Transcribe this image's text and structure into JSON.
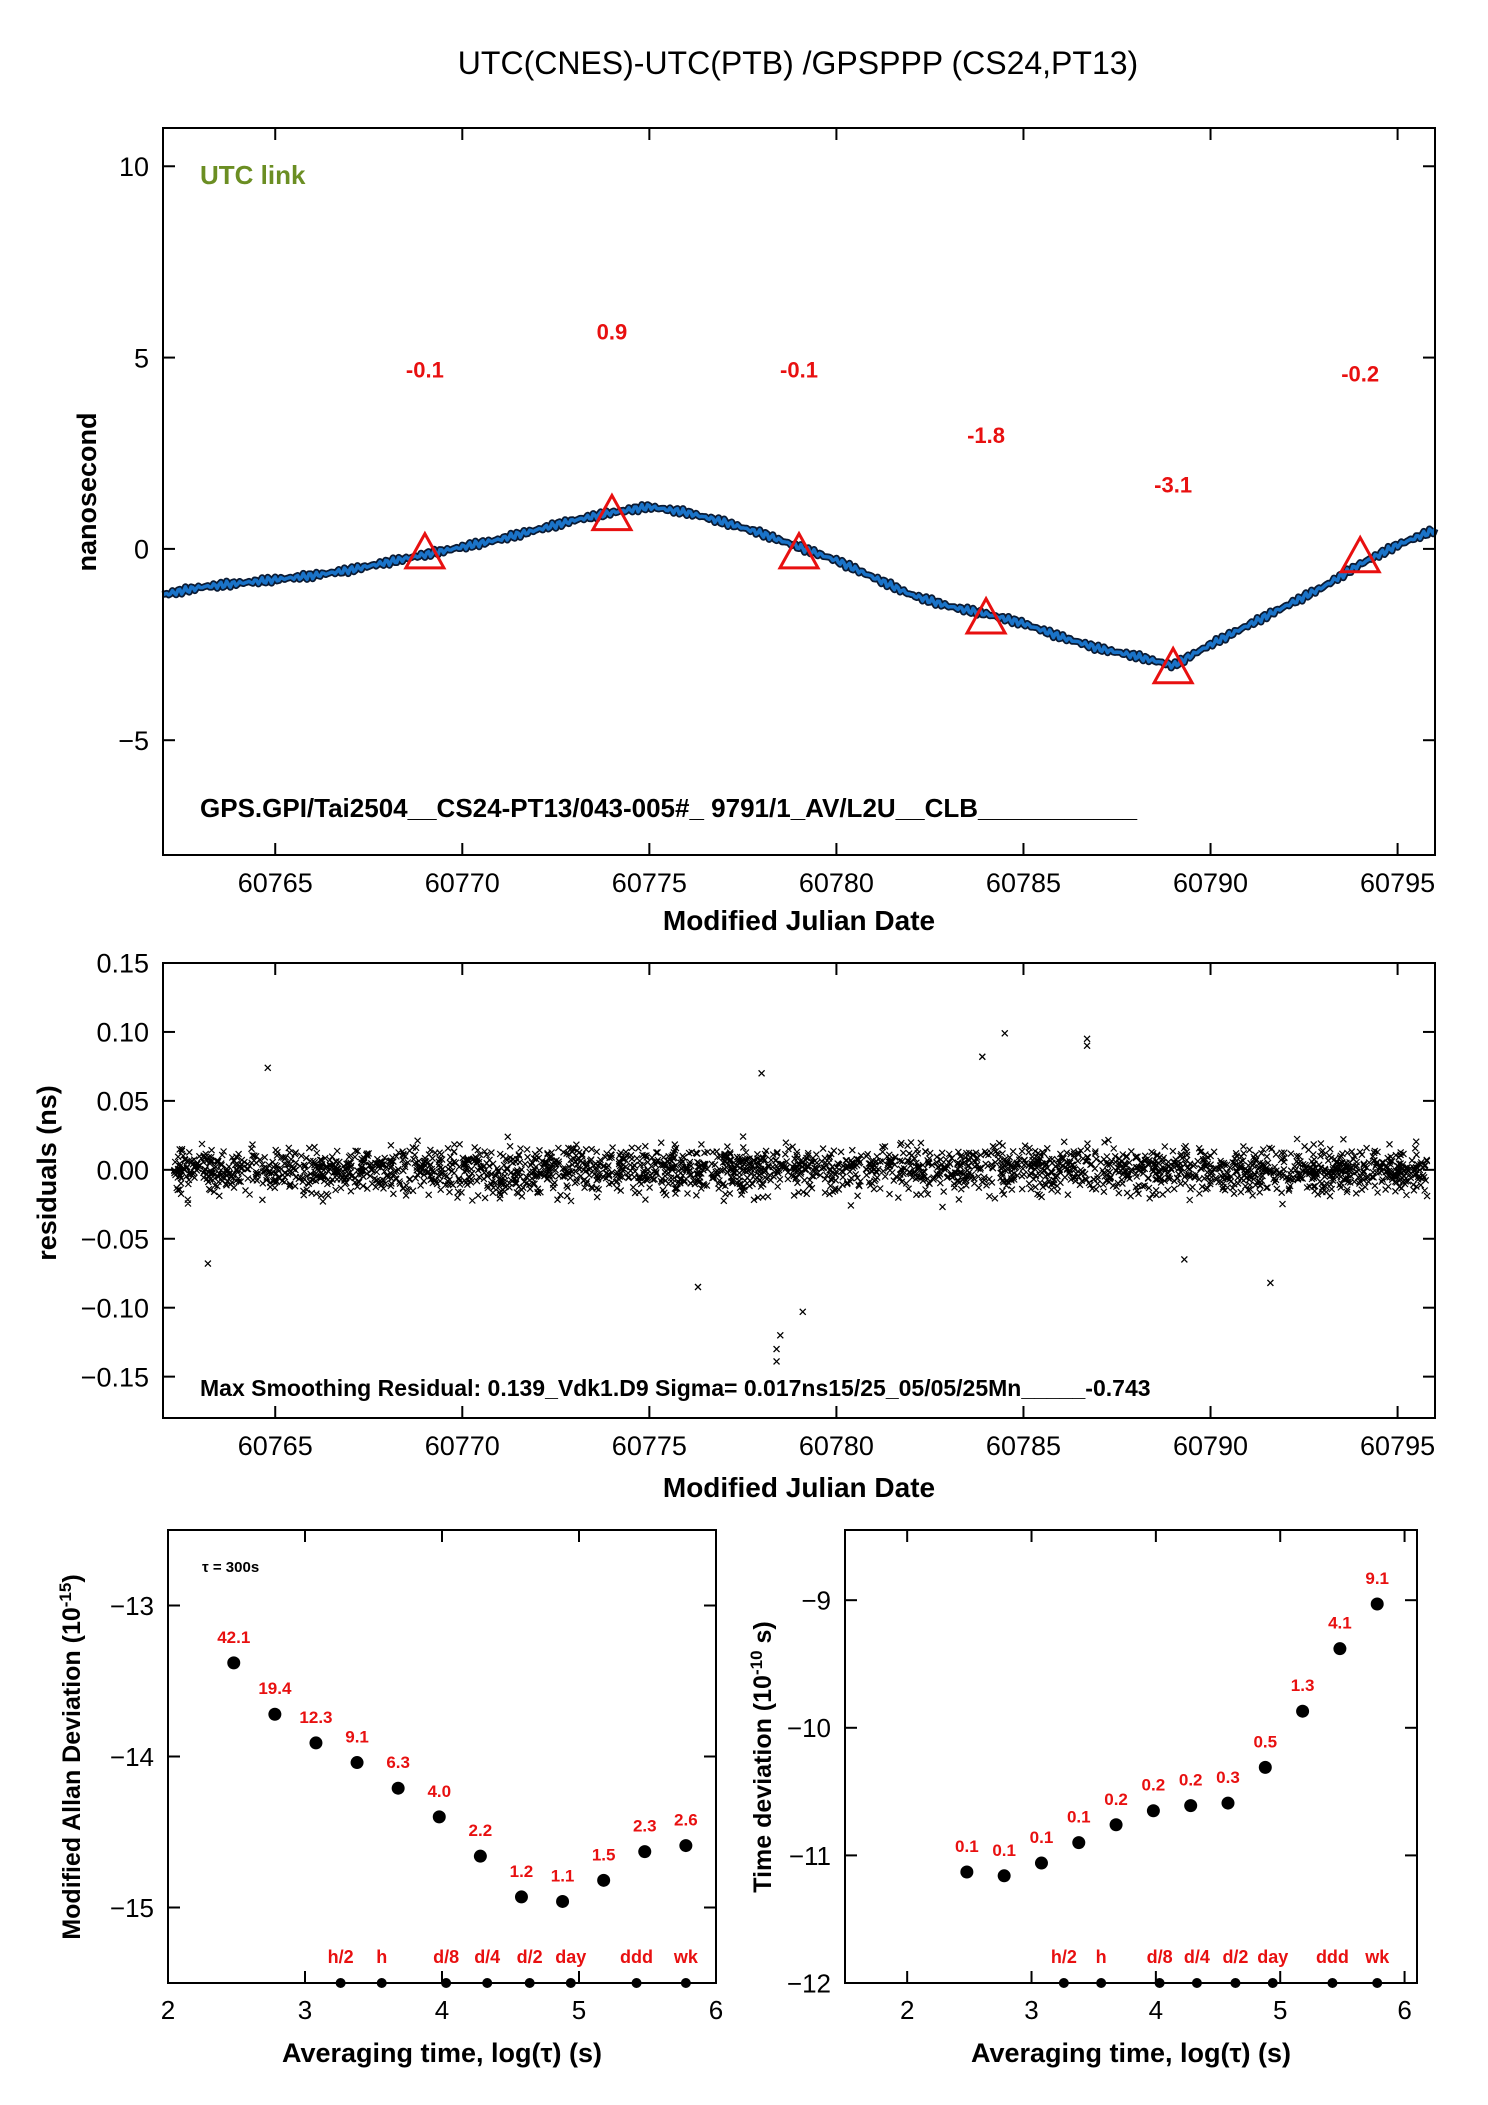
{
  "figure_title": "UTC(CNES)-UTC(PTB)  /GPSPPP  (CS24,PT13)",
  "chart_data": [
    {
      "id": "time_series",
      "type": "line",
      "title": "UTC(CNES)-UTC(PTB)  /GPSPPP  (CS24,PT13)",
      "xlabel": "Modified Julian Date",
      "ylabel": "nanosecond",
      "xlim": [
        60762,
        60796
      ],
      "ylim": [
        -8,
        11
      ],
      "xticks": [
        60765,
        60770,
        60775,
        60780,
        60785,
        60790,
        60795
      ],
      "yticks": [
        -5,
        0,
        5,
        10
      ],
      "series_color": "#1a73c8",
      "marker_color": "#e81010",
      "annotation_color": "#e81010",
      "inner_label": "UTC link",
      "inner_label_color": "#6b8e23",
      "footer_text": "GPS.GPI/Tai2504__CS24-PT13/043-005#_  9791/1_AV/L2U__CLB___________",
      "curve": {
        "x": [
          60762,
          60763,
          60764,
          60765,
          60766,
          60767,
          60768,
          60769,
          60770,
          60771,
          60772,
          60773,
          60774,
          60775,
          60776,
          60777,
          60778,
          60779,
          60780,
          60781,
          60782,
          60783,
          60784,
          60785,
          60786,
          60787,
          60788,
          60789,
          60790,
          60791,
          60792,
          60793,
          60794,
          60795,
          60796
        ],
        "y": [
          -1.2,
          -1.0,
          -0.9,
          -0.8,
          -0.7,
          -0.55,
          -0.35,
          -0.15,
          0.05,
          0.25,
          0.5,
          0.75,
          0.95,
          1.1,
          0.95,
          0.7,
          0.4,
          0.05,
          -0.3,
          -0.75,
          -1.2,
          -1.5,
          -1.7,
          -1.95,
          -2.3,
          -2.6,
          -2.8,
          -3.05,
          -2.5,
          -2.0,
          -1.5,
          -1.0,
          -0.4,
          0.1,
          0.5
        ]
      },
      "points": [
        {
          "x": 60769,
          "y": -0.1,
          "label": "-0.1"
        },
        {
          "x": 60774,
          "y": 0.9,
          "label": "0.9"
        },
        {
          "x": 60779,
          "y": -0.1,
          "label": "-0.1"
        },
        {
          "x": 60784,
          "y": -1.8,
          "label": "-1.8"
        },
        {
          "x": 60789,
          "y": -3.1,
          "label": "-3.1"
        },
        {
          "x": 60794,
          "y": -0.2,
          "label": "-0.2"
        }
      ]
    },
    {
      "id": "residuals",
      "type": "scatter",
      "xlabel": "Modified Julian Date",
      "ylabel": "residuals (ns)",
      "xlim": [
        60762,
        60796
      ],
      "ylim": [
        -0.18,
        0.15
      ],
      "xticks": [
        60765,
        60770,
        60775,
        60780,
        60785,
        60790,
        60795
      ],
      "yticks": [
        0.15,
        0.1,
        0.05,
        0.0,
        -0.05,
        -0.1,
        -0.15
      ],
      "ytick_labels": [
        "0.15",
        "0.10",
        "0.05",
        "0.00",
        "−0.05",
        "−0.10",
        "−0.15"
      ],
      "footer_text": "Max Smoothing Residual: 0.139_Vdk1.D9  Sigma= 0.017ns15/25_05/05/25Mn_____-0.743",
      "sigma_ns": 0.017,
      "max_residual_ns": 0.139,
      "point_count": 9791,
      "outliers": [
        {
          "x": 60778.4,
          "y": -0.139
        },
        {
          "x": 60778.4,
          "y": -0.13
        },
        {
          "x": 60778.5,
          "y": -0.12
        },
        {
          "x": 60779.1,
          "y": -0.103
        },
        {
          "x": 60784.5,
          "y": 0.099
        },
        {
          "x": 60786.7,
          "y": 0.095
        },
        {
          "x": 60786.7,
          "y": 0.09
        },
        {
          "x": 60776.3,
          "y": -0.085
        },
        {
          "x": 60791.6,
          "y": -0.082
        },
        {
          "x": 60763.2,
          "y": -0.068
        },
        {
          "x": 60764.8,
          "y": 0.074
        },
        {
          "x": 60789.3,
          "y": -0.065
        },
        {
          "x": 60783.9,
          "y": 0.082
        },
        {
          "x": 60778.0,
          "y": 0.07
        }
      ]
    },
    {
      "id": "modified_allan_deviation",
      "type": "scatter",
      "xlabel": "Averaging time, log(τ) (s)",
      "ylabel": "Modified Allan Deviation (10",
      "ylabel_sup": "-15",
      "ylabel_tail": ")",
      "xlim": [
        2,
        6
      ],
      "ylim": [
        -15.5,
        -12.5
      ],
      "xticks": [
        2,
        3,
        4,
        5,
        6
      ],
      "yticks": [
        -13,
        -14,
        -15
      ],
      "ytick_labels": [
        "−13",
        "−14",
        "−15"
      ],
      "tau_note": "τ = 300s",
      "point_color": "#000000",
      "label_color": "#e81010",
      "points": [
        {
          "x": 2.48,
          "y": -13.38,
          "label": "42.1"
        },
        {
          "x": 2.78,
          "y": -13.72,
          "label": "19.4"
        },
        {
          "x": 3.08,
          "y": -13.91,
          "label": "12.3"
        },
        {
          "x": 3.38,
          "y": -14.04,
          "label": "9.1"
        },
        {
          "x": 3.68,
          "y": -14.21,
          "label": "6.3"
        },
        {
          "x": 3.98,
          "y": -14.4,
          "label": "4.0"
        },
        {
          "x": 4.28,
          "y": -14.66,
          "label": "2.2"
        },
        {
          "x": 4.58,
          "y": -14.93,
          "label": "1.2"
        },
        {
          "x": 4.88,
          "y": -14.96,
          "label": "1.1"
        },
        {
          "x": 5.18,
          "y": -14.82,
          "label": "1.5"
        },
        {
          "x": 5.48,
          "y": -14.63,
          "label": "2.3"
        },
        {
          "x": 5.78,
          "y": -14.59,
          "label": "2.6"
        }
      ],
      "time_markers": [
        {
          "x": 3.26,
          "label": "h/2"
        },
        {
          "x": 3.56,
          "label": "h"
        },
        {
          "x": 4.03,
          "label": "d/8"
        },
        {
          "x": 4.33,
          "label": "d/4"
        },
        {
          "x": 4.64,
          "label": "d/2"
        },
        {
          "x": 4.94,
          "label": "day"
        },
        {
          "x": 5.42,
          "label": "ddd"
        },
        {
          "x": 5.78,
          "label": "wk"
        }
      ]
    },
    {
      "id": "time_deviation",
      "type": "scatter",
      "xlabel": "Averaging time, log(τ) (s)",
      "ylabel": "Time deviation (10",
      "ylabel_sup": "-10",
      "ylabel_tail": " s)",
      "xlim": [
        1.5,
        6.1
      ],
      "ylim": [
        -12,
        -8.45
      ],
      "xticks": [
        2,
        3,
        4,
        5,
        6
      ],
      "yticks": [
        -9,
        -10,
        -11,
        -12
      ],
      "ytick_labels": [
        "−9",
        "−10",
        "−11",
        "−12"
      ],
      "point_color": "#000000",
      "label_color": "#e81010",
      "points": [
        {
          "x": 2.48,
          "y": -11.13,
          "label": "0.1"
        },
        {
          "x": 2.78,
          "y": -11.16,
          "label": "0.1"
        },
        {
          "x": 3.08,
          "y": -11.06,
          "label": "0.1"
        },
        {
          "x": 3.38,
          "y": -10.9,
          "label": "0.1"
        },
        {
          "x": 3.68,
          "y": -10.76,
          "label": "0.2"
        },
        {
          "x": 3.98,
          "y": -10.65,
          "label": "0.2"
        },
        {
          "x": 4.28,
          "y": -10.61,
          "label": "0.2"
        },
        {
          "x": 4.58,
          "y": -10.59,
          "label": "0.3"
        },
        {
          "x": 4.88,
          "y": -10.31,
          "label": "0.5"
        },
        {
          "x": 5.18,
          "y": -9.87,
          "label": "1.3"
        },
        {
          "x": 5.48,
          "y": -9.38,
          "label": "4.1"
        },
        {
          "x": 5.78,
          "y": -9.03,
          "label": "9.1"
        }
      ],
      "time_markers": [
        {
          "x": 3.26,
          "label": "h/2"
        },
        {
          "x": 3.56,
          "label": "h"
        },
        {
          "x": 4.03,
          "label": "d/8"
        },
        {
          "x": 4.33,
          "label": "d/4"
        },
        {
          "x": 4.64,
          "label": "d/2"
        },
        {
          "x": 4.94,
          "label": "day"
        },
        {
          "x": 5.42,
          "label": "ddd"
        },
        {
          "x": 5.78,
          "label": "wk"
        }
      ]
    }
  ]
}
